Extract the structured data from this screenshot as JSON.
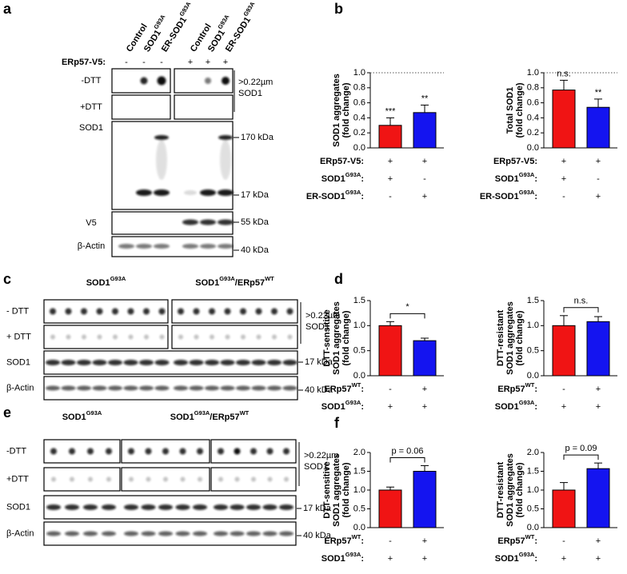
{
  "panels": {
    "a": {
      "label": "a",
      "columns": [
        [
          "Control"
        ],
        [
          "SOD1",
          "G93A"
        ],
        [
          "ER-SOD1",
          "G93A"
        ],
        [
          "Control"
        ],
        [
          "SOD1",
          "G93A"
        ],
        [
          "ER-SOD1",
          "G93A"
        ]
      ],
      "treatment": {
        "label": "ERp57-V5:",
        "signs": [
          "-",
          "-",
          "-",
          "+",
          "+",
          "+"
        ]
      },
      "rows": [
        "-DTT",
        "+DTT",
        "SOD1",
        "V5",
        "β-Actin"
      ],
      "filter": [
        ">0.22µm",
        "SOD1"
      ],
      "markers": [
        "170 kDa",
        "17 kDa",
        "55 kDa",
        "40 kDa"
      ]
    },
    "b": {
      "label": "b"
    },
    "c": {
      "label": "c",
      "groups": [
        [
          "SOD1",
          "G93A"
        ],
        [
          "SOD1",
          "G93A",
          "/ERp57",
          "WT"
        ]
      ],
      "rows": [
        "- DTT",
        "+ DTT",
        "SOD1",
        "β-Actin"
      ],
      "filter": [
        ">0.22µm",
        "SOD1"
      ],
      "markers": [
        "17 kDa",
        "40 kDa"
      ]
    },
    "d": {
      "label": "d"
    },
    "e": {
      "label": "e",
      "groups": [
        [
          "SOD1",
          "G93A"
        ],
        [
          "SOD1",
          "G93A",
          "/ERp57",
          "WT"
        ]
      ],
      "rows": [
        "-DTT",
        "+DTT",
        "SOD1",
        "β-Actin"
      ],
      "filter": [
        ">0.22µm",
        "SOD1"
      ],
      "markers": [
        "17 kDa",
        "40 kDa"
      ]
    },
    "f": {
      "label": "f"
    }
  },
  "chart_data": [
    {
      "type": "bar",
      "y_label": [
        "SOD1 aggregates",
        "(fold change)"
      ],
      "values": [
        0.3,
        0.47
      ],
      "errors": [
        0.1,
        0.1
      ],
      "colors": [
        "#f01414",
        "#1414f0"
      ],
      "ylim": [
        0,
        1
      ],
      "yticks": [
        {
          "value": 0,
          "label": "0.0"
        },
        0.2,
        0.4,
        0.6,
        0.8,
        {
          "value": 1,
          "label": "1.0"
        }
      ],
      "reference_line": 1,
      "bar_annotations": [
        "***",
        "**"
      ],
      "conditions": [
        {
          "label": [
            "ERp57-V5:"
          ],
          "signs": [
            "+",
            "+"
          ]
        },
        {
          "label": [
            "SOD1",
            "G93A",
            ":"
          ],
          "signs": [
            "+",
            "-"
          ]
        },
        {
          "label": [
            "ER-SOD1",
            "G93A",
            ":"
          ],
          "signs": [
            "-",
            "+"
          ]
        }
      ]
    },
    {
      "type": "bar",
      "y_label": [
        "Total SOD1",
        "(fold change)"
      ],
      "values": [
        0.77,
        0.54
      ],
      "errors": [
        0.13,
        0.11
      ],
      "colors": [
        "#f01414",
        "#1414f0"
      ],
      "ylim": [
        0,
        1
      ],
      "yticks": [
        {
          "value": 0,
          "label": "0.0"
        },
        0.2,
        0.4,
        0.6,
        0.8,
        {
          "value": 1,
          "label": "1.0"
        }
      ],
      "reference_line": 1,
      "bar_annotations": [
        "n.s.",
        "**"
      ],
      "conditions": [
        {
          "label": [
            "ERp57-V5:"
          ],
          "signs": [
            "+",
            "+"
          ]
        },
        {
          "label": [
            "SOD1",
            "G93A",
            ":"
          ],
          "signs": [
            "+",
            "-"
          ]
        },
        {
          "label": [
            "ER-SOD1",
            "G93A",
            ":"
          ],
          "signs": [
            "-",
            "+"
          ]
        }
      ]
    },
    {
      "type": "bar",
      "y_label": [
        "DTT-sensitive",
        "SOD1 aggregates",
        "(fold change)"
      ],
      "values": [
        1.0,
        0.7
      ],
      "errors": [
        0.08,
        0.05
      ],
      "colors": [
        "#f01414",
        "#1414f0"
      ],
      "ylim": [
        0,
        1.5
      ],
      "yticks": [
        {
          "value": 0,
          "label": "0.0"
        },
        0.5,
        {
          "value": 1,
          "label": "1.0"
        },
        1.5
      ],
      "bracket_label": "*",
      "conditions": [
        {
          "label": [
            "ERp57",
            "WT",
            ":"
          ],
          "signs": [
            "-",
            "+"
          ]
        },
        {
          "label": [
            "SOD1",
            "G93A",
            ":"
          ],
          "signs": [
            "+",
            "+"
          ]
        }
      ]
    },
    {
      "type": "bar",
      "y_label": [
        "DTT-resistant",
        "SOD1 aggregates",
        "(fold change)"
      ],
      "values": [
        1.0,
        1.08
      ],
      "errors": [
        0.2,
        0.1
      ],
      "colors": [
        "#f01414",
        "#1414f0"
      ],
      "ylim": [
        0,
        1.5
      ],
      "yticks": [
        {
          "value": 0,
          "label": "0.0"
        },
        0.5,
        {
          "value": 1,
          "label": "1.0"
        },
        1.5
      ],
      "bracket_label": "n.s.",
      "conditions": [
        {
          "label": [
            "ERp57",
            "WT",
            ":"
          ],
          "signs": [
            "-",
            "+"
          ]
        },
        {
          "label": [
            "SOD1",
            "G93A",
            ":"
          ],
          "signs": [
            "+",
            "+"
          ]
        }
      ]
    },
    {
      "type": "bar",
      "y_label": [
        "DTT-sensitive",
        "SOD1 aggregates",
        "(fold change)"
      ],
      "values": [
        1.0,
        1.5
      ],
      "errors": [
        0.08,
        0.15
      ],
      "colors": [
        "#f01414",
        "#1414f0"
      ],
      "ylim": [
        0,
        2
      ],
      "yticks": [
        {
          "value": 0,
          "label": "0.0"
        },
        0.5,
        {
          "value": 1,
          "label": "1.0"
        },
        1.5,
        {
          "value": 2,
          "label": "2.0"
        }
      ],
      "bracket_label": "p = 0.06",
      "conditions": [
        {
          "label": [
            "ERp57",
            "WT",
            ":"
          ],
          "signs": [
            "-",
            "+"
          ]
        },
        {
          "label": [
            "SOD1",
            "G93A",
            ":"
          ],
          "signs": [
            "+",
            "+"
          ]
        }
      ]
    },
    {
      "type": "bar",
      "y_label": [
        "DTT-resistant",
        "SOD1 aggregates",
        "(fold change)"
      ],
      "values": [
        1.0,
        1.57
      ],
      "errors": [
        0.2,
        0.15
      ],
      "colors": [
        "#f01414",
        "#1414f0"
      ],
      "ylim": [
        0,
        2
      ],
      "yticks": [
        {
          "value": 0,
          "label": "0.0"
        },
        0.5,
        {
          "value": 1,
          "label": "1.0"
        },
        1.5,
        {
          "value": 2,
          "label": "2.0"
        }
      ],
      "bracket_label": "p = 0.09",
      "conditions": [
        {
          "label": [
            "ERp57",
            "WT",
            ":"
          ],
          "signs": [
            "-",
            "+"
          ]
        },
        {
          "label": [
            "SOD1",
            "G93A",
            ":"
          ],
          "signs": [
            "+",
            "+"
          ]
        }
      ]
    }
  ]
}
